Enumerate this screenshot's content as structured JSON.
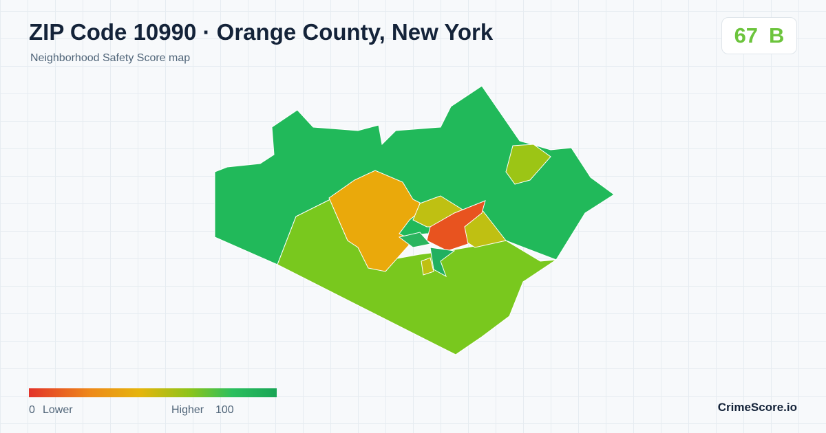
{
  "header": {
    "title": "ZIP Code 10990 · Orange County, New York",
    "subtitle": "Neighborhood Safety Score map"
  },
  "score": {
    "value": "67",
    "grade": "B"
  },
  "legend": {
    "min": "0",
    "min_label": "Lower",
    "max_label": "Higher",
    "max": "100"
  },
  "brand": "CrimeScore.io"
}
